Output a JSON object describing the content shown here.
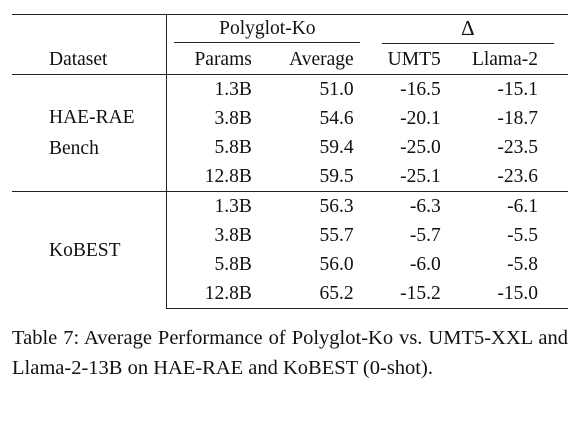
{
  "table": {
    "group_headers": {
      "polyglot": "Polyglot-Ko",
      "delta": "Δ"
    },
    "col_headers": {
      "dataset": "Dataset",
      "params": "Params",
      "average": "Average",
      "umt5": "UMT5",
      "llama": "Llama-2"
    },
    "groups": [
      {
        "dataset_lines": [
          "HAE-RAE",
          "Bench"
        ],
        "rows": [
          {
            "params": "1.3B",
            "average": "51.0",
            "umt5": "-16.5",
            "llama": "-15.1"
          },
          {
            "params": "3.8B",
            "average": "54.6",
            "umt5": "-20.1",
            "llama": "-18.7"
          },
          {
            "params": "5.8B",
            "average": "59.4",
            "umt5": "-25.0",
            "llama": "-23.5"
          },
          {
            "params": "12.8B",
            "average": "59.5",
            "umt5": "-25.1",
            "llama": "-23.6"
          }
        ]
      },
      {
        "dataset_lines": [
          "KoBEST"
        ],
        "rows": [
          {
            "params": "1.3B",
            "average": "56.3",
            "umt5": "-6.3",
            "llama": "-6.1"
          },
          {
            "params": "3.8B",
            "average": "55.7",
            "umt5": "-5.7",
            "llama": "-5.5"
          },
          {
            "params": "5.8B",
            "average": "56.0",
            "umt5": "-6.0",
            "llama": "-5.8"
          },
          {
            "params": "12.8B",
            "average": "65.2",
            "umt5": "-15.2",
            "llama": "-15.0"
          }
        ]
      }
    ]
  },
  "caption": "Table 7: Average Performance of Polyglot-Ko vs. UMT5-XXL and Llama-2-13B on HAE-RAE and KoBEST (0-shot)."
}
